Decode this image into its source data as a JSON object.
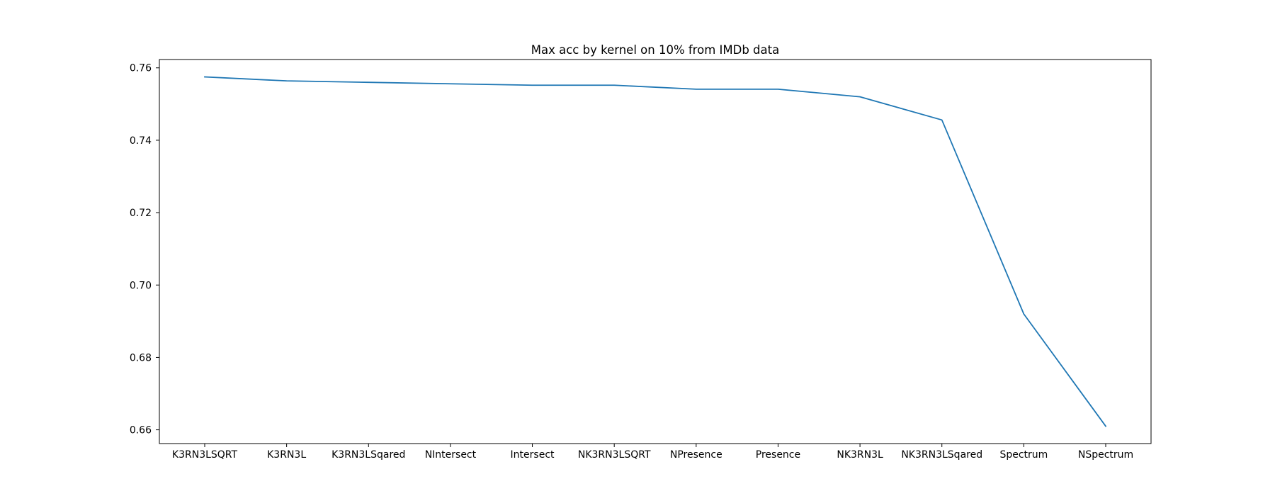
{
  "chart_data": {
    "type": "line",
    "title": "Max acc by kernel on 10% from IMDb data",
    "xlabel": "",
    "ylabel": "",
    "categories": [
      "K3RN3LSQRT",
      "K3RN3L",
      "K3RN3LSqared",
      "NIntersect",
      "Intersect",
      "NK3RN3LSQRT",
      "NPresence",
      "Presence",
      "NK3RN3L",
      "NK3RN3LSqared",
      "Spectrum",
      "NSpectrum"
    ],
    "series": [
      {
        "name": "max acc",
        "color": "#1f77b4",
        "values": [
          0.7575,
          0.7564,
          0.756,
          0.7556,
          0.7552,
          0.7552,
          0.7541,
          0.7541,
          0.752,
          0.7456,
          0.692,
          0.661
        ]
      }
    ],
    "ylim": [
      0.6562,
      0.7623
    ],
    "yticks": [
      0.66,
      0.68,
      0.7,
      0.72,
      0.74,
      0.76
    ],
    "ytick_labels": [
      "0.66",
      "0.68",
      "0.70",
      "0.72",
      "0.74",
      "0.76"
    ],
    "grid": false,
    "legend": "none"
  }
}
